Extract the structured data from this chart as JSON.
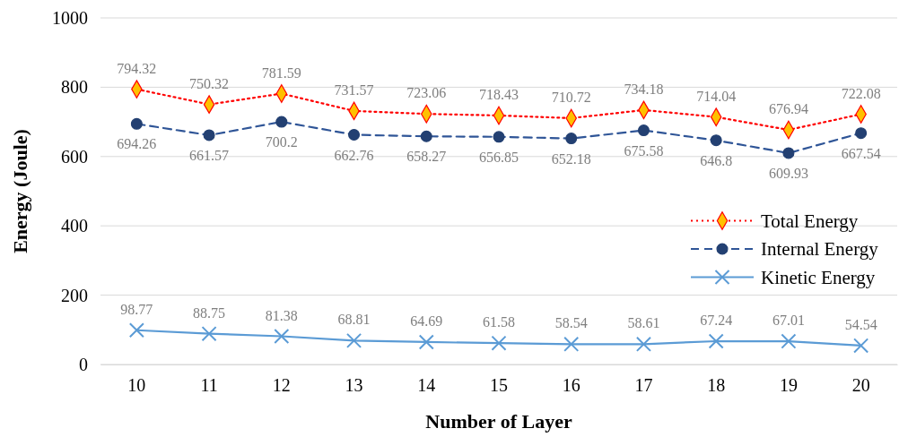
{
  "chart_data": {
    "type": "line",
    "xlabel": "Number of Layer",
    "ylabel": "Energy (Joule)",
    "categories": [
      "10",
      "11",
      "12",
      "13",
      "14",
      "15",
      "16",
      "17",
      "18",
      "19",
      "20"
    ],
    "series": [
      {
        "name": "Total Energy",
        "color": "#ff0000",
        "marker": "diamond",
        "line_style": "dotted",
        "values": [
          794.32,
          750.32,
          781.59,
          731.57,
          723.06,
          718.43,
          710.72,
          734.18,
          714.04,
          676.94,
          722.08
        ]
      },
      {
        "name": "Internal Energy",
        "color": "#2f5597",
        "marker": "circle",
        "line_style": "dashed",
        "values": [
          694.26,
          661.57,
          700.2,
          662.76,
          658.27,
          656.85,
          652.18,
          675.58,
          646.8,
          609.93,
          667.54
        ]
      },
      {
        "name": "Kinetic Energy",
        "color": "#5b9bd5",
        "marker": "cross",
        "line_style": "solid",
        "values": [
          98.77,
          88.75,
          81.38,
          68.81,
          64.69,
          61.58,
          58.54,
          58.61,
          67.24,
          67.01,
          54.54
        ]
      }
    ],
    "ylim": [
      0,
      1000
    ],
    "yticks": [
      0,
      200,
      400,
      600,
      800,
      1000
    ],
    "grid": "y",
    "legend": "right",
    "data_labels": true
  }
}
